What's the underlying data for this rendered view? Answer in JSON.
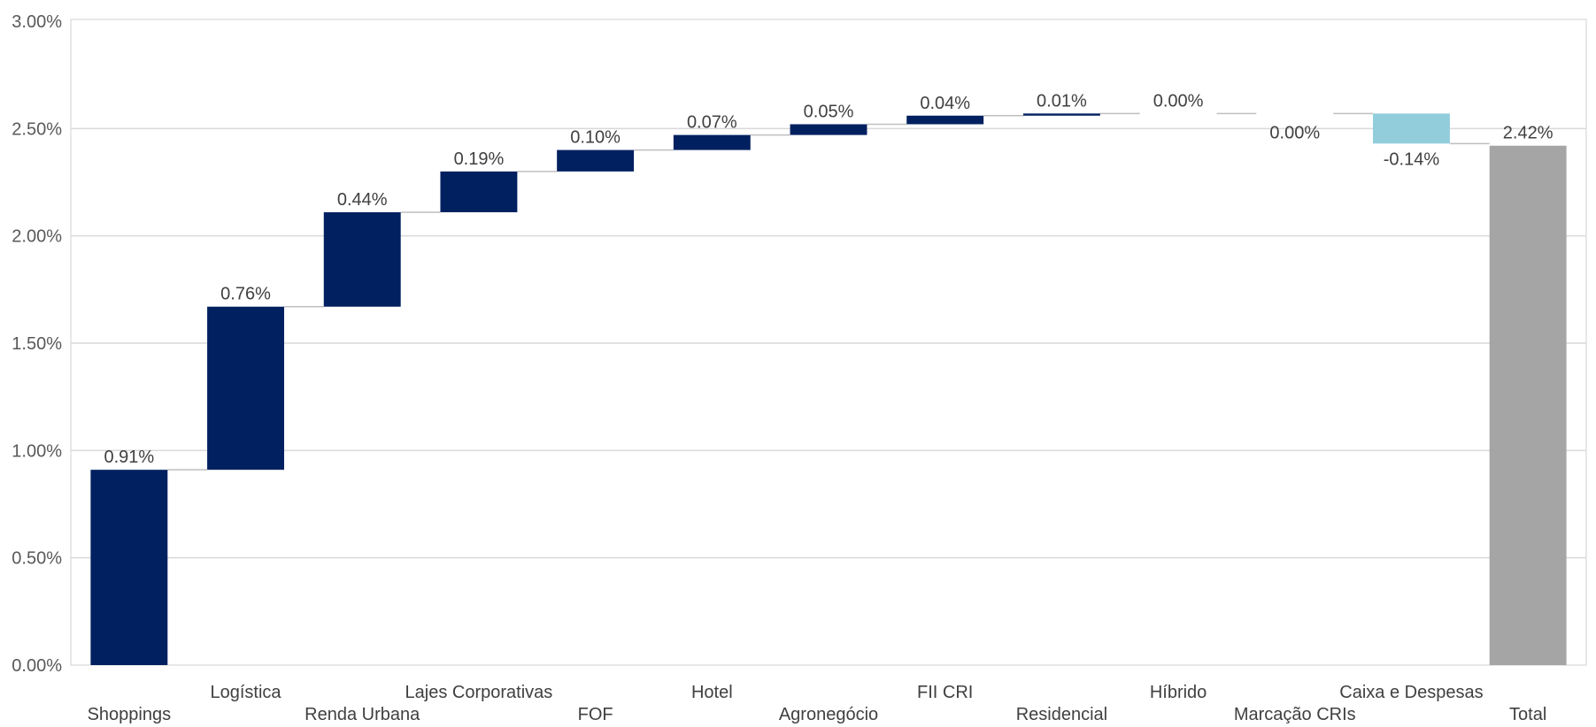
{
  "chart_data": {
    "type": "waterfall",
    "title": "",
    "xlabel": "",
    "ylabel": "",
    "ylim": [
      0,
      3.0
    ],
    "y_ticks": [
      "0.00%",
      "0.50%",
      "1.00%",
      "1.50%",
      "2.00%",
      "2.50%",
      "3.00%"
    ],
    "y_tick_values": [
      0,
      0.5,
      1.0,
      1.5,
      2.0,
      2.5,
      3.0
    ],
    "grid": true,
    "legend": "none",
    "categories": [
      "Shoppings",
      "Logística",
      "Renda Urbana",
      "Lajes Corporativas",
      "FOF",
      "Hotel",
      "Agronegócio",
      "FII CRI",
      "Residencial",
      "Híbrido",
      "Marcação CRIs",
      "Caixa e Despesas",
      "Total"
    ],
    "values": [
      0.91,
      0.76,
      0.44,
      0.19,
      0.1,
      0.07,
      0.05,
      0.04,
      0.01,
      0.0,
      0.0,
      -0.14,
      2.42
    ],
    "data_labels": [
      "0.91%",
      "0.76%",
      "0.44%",
      "0.19%",
      "0.10%",
      "0.07%",
      "0.05%",
      "0.04%",
      "0.01%",
      "0.00%",
      "0.00%",
      "-0.14%",
      "2.42%"
    ],
    "bar_kinds": [
      "increase",
      "increase",
      "increase",
      "increase",
      "increase",
      "increase",
      "increase",
      "increase",
      "increase",
      "increase",
      "increase",
      "decrease",
      "total"
    ],
    "colors": {
      "increase": "#002060",
      "decrease": "#92CDDC",
      "total": "#A5A5A5",
      "connector": "#BFBFBF",
      "grid": "#D9D9D9",
      "axis": "#BFBFBF"
    }
  }
}
